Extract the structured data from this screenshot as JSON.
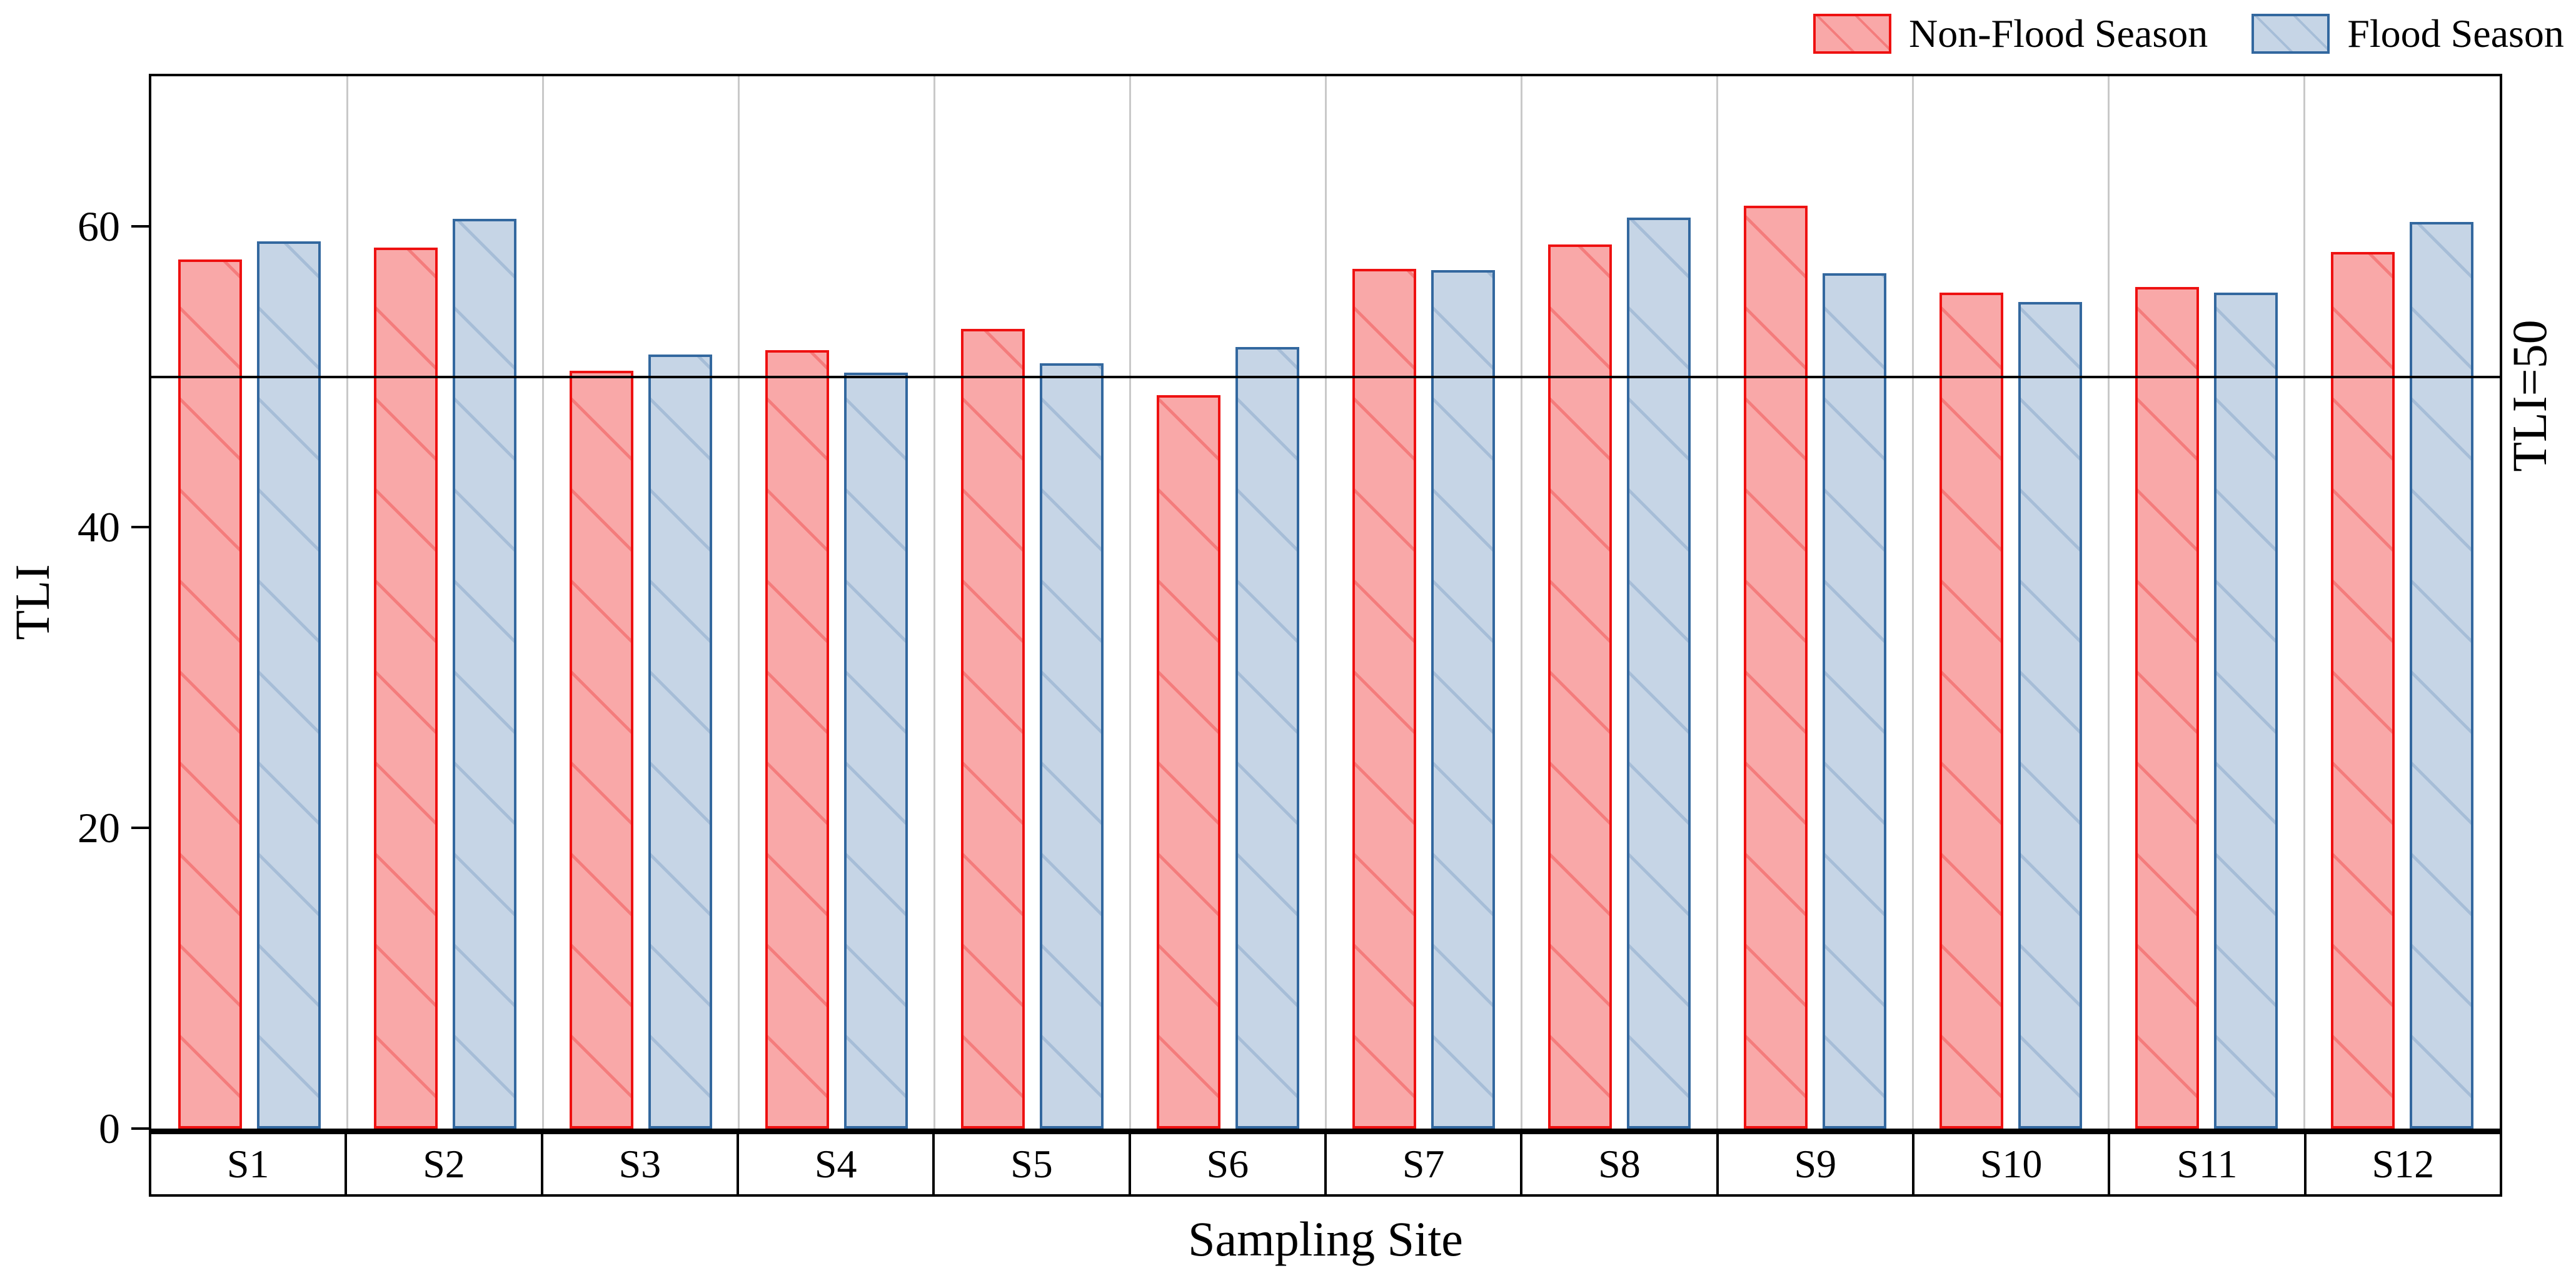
{
  "chart_data": {
    "type": "bar",
    "title": "",
    "xlabel": "Sampling Site",
    "ylabel": "TLI",
    "ylim": [
      0,
      70
    ],
    "yticks": [
      0,
      20,
      40,
      60
    ],
    "grid": "vertical category separators, light gray",
    "legend_position": "top-right",
    "categories": [
      "S1",
      "S2",
      "S3",
      "S4",
      "S5",
      "S6",
      "S7",
      "S8",
      "S9",
      "S10",
      "S11",
      "S12"
    ],
    "series": [
      {
        "name": "Non-Flood Season",
        "fill_color": "#f9a8a8",
        "edge_color": "#ee1111",
        "hatch_color": "#f47c7c",
        "hatch": "/",
        "values": [
          57.8,
          58.6,
          50.4,
          51.8,
          53.2,
          48.8,
          57.2,
          58.8,
          61.4,
          55.6,
          56.0,
          58.3
        ]
      },
      {
        "name": "Flood Season",
        "fill_color": "#c6d5e6",
        "edge_color": "#33689f",
        "hatch_color": "#a6bdd7",
        "hatch": "/",
        "values": [
          59.0,
          60.5,
          51.5,
          50.3,
          50.9,
          52.0,
          57.1,
          60.6,
          56.9,
          55.0,
          55.6,
          60.3
        ]
      }
    ],
    "reference_line": {
      "value": 50,
      "label": "TLI=50",
      "color": "#000000"
    }
  },
  "axes": {
    "y_label": "TLI",
    "x_label": "Sampling Site",
    "right_label": "TLI=50",
    "y_tick_labels": [
      "0",
      "20",
      "40",
      "60"
    ]
  },
  "colors": {
    "axis": "#000000",
    "gridline": "#c9c9c9",
    "background": "#ffffff"
  }
}
